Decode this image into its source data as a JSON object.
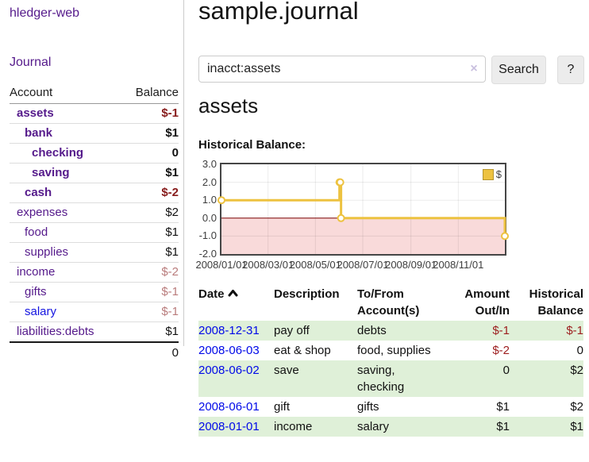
{
  "app": {
    "title": "hledger-web"
  },
  "sidebar": {
    "journal_label": "Journal",
    "accounts": {
      "header_account": "Account",
      "header_balance": "Balance",
      "rows": [
        {
          "name": "assets",
          "balance": "$-1",
          "depth": 1,
          "emphasis": true,
          "visited": true
        },
        {
          "name": "bank",
          "balance": "$1",
          "depth": 2,
          "emphasis": true,
          "visited": true
        },
        {
          "name": "checking",
          "balance": "0",
          "depth": 3,
          "emphasis": true,
          "visited": true
        },
        {
          "name": "saving",
          "balance": "$1",
          "depth": 3,
          "emphasis": true,
          "visited": true
        },
        {
          "name": "cash",
          "balance": "$-2",
          "depth": 2,
          "emphasis": true,
          "visited": true
        },
        {
          "name": "expenses",
          "balance": "$2",
          "depth": 1,
          "emphasis": false,
          "visited": true
        },
        {
          "name": "food",
          "balance": "$1",
          "depth": 2,
          "emphasis": false,
          "visited": true
        },
        {
          "name": "supplies",
          "balance": "$1",
          "depth": 2,
          "emphasis": false,
          "visited": true
        },
        {
          "name": "income",
          "balance": "$-2",
          "depth": 1,
          "emphasis": false,
          "visited": true
        },
        {
          "name": "gifts",
          "balance": "$-1",
          "depth": 2,
          "emphasis": false,
          "visited": true
        },
        {
          "name": "salary",
          "balance": "$-1",
          "depth": 2,
          "emphasis": false,
          "visited": false
        },
        {
          "name": "liabilities:debts",
          "balance": "$1",
          "depth": 1,
          "emphasis": false,
          "visited": true
        }
      ],
      "total": "0"
    }
  },
  "main": {
    "title": "sample.journal",
    "search": {
      "value": "inacct:assets",
      "clear_icon": "×",
      "button_label": "Search",
      "help_label": "?"
    },
    "account_heading": "assets",
    "chart_label": "Historical Balance:",
    "register": {
      "headers": {
        "date": "Date",
        "date_sort": "ascending",
        "description": "Description",
        "accounts": "To/From Account(s)",
        "amount": "Amount Out/In",
        "balance": "Historical Balance"
      },
      "rows": [
        {
          "date": "2008-12-31",
          "description": "pay off",
          "accounts": "debts",
          "amount": "$-1",
          "balance": "$-1"
        },
        {
          "date": "2008-06-03",
          "description": "eat & shop",
          "accounts": "food, supplies",
          "amount": "$-2",
          "balance": "0"
        },
        {
          "date": "2008-06-02",
          "description": "save",
          "accounts": "saving, checking",
          "amount": "0",
          "balance": "$2"
        },
        {
          "date": "2008-06-01",
          "description": "gift",
          "accounts": "gifts",
          "amount": "$1",
          "balance": "$2"
        },
        {
          "date": "2008-01-01",
          "description": "income",
          "accounts": "salary",
          "amount": "$1",
          "balance": "$1"
        }
      ]
    }
  },
  "chart_data": {
    "type": "line",
    "title": "Historical Balance",
    "step": true,
    "series": [
      {
        "name": "$",
        "color": "#edc240",
        "points": [
          [
            "2008-01-01",
            1
          ],
          [
            "2008-06-01",
            2
          ],
          [
            "2008-06-02",
            2
          ],
          [
            "2008-06-03",
            0
          ],
          [
            "2008-12-31",
            -1
          ]
        ]
      }
    ],
    "xlim": [
      "2008-01-01",
      "2008-12-31"
    ],
    "ylim": [
      -2,
      3
    ],
    "x_ticks": [
      "2008/01/01",
      "2008/03/01",
      "2008/05/01",
      "2008/07/01",
      "2008/09/01",
      "2008/11/01"
    ],
    "y_ticks": [
      3.0,
      2.0,
      1.0,
      0.0,
      -1.0,
      -2.0
    ],
    "legend": {
      "label": "$",
      "position": "top-right"
    },
    "grid": true,
    "zero_line_color": "#7a0000",
    "negative_region_color": "#f9dada"
  },
  "colors": {
    "link_purple": "#551a8b",
    "link_blue": "#1414e0",
    "negative_strong": "#871b1b",
    "negative_faded": "#b97c7c",
    "table_negative": "#9d2020",
    "row_stripe_green": "#dff0d8",
    "series_gold": "#edc240"
  }
}
